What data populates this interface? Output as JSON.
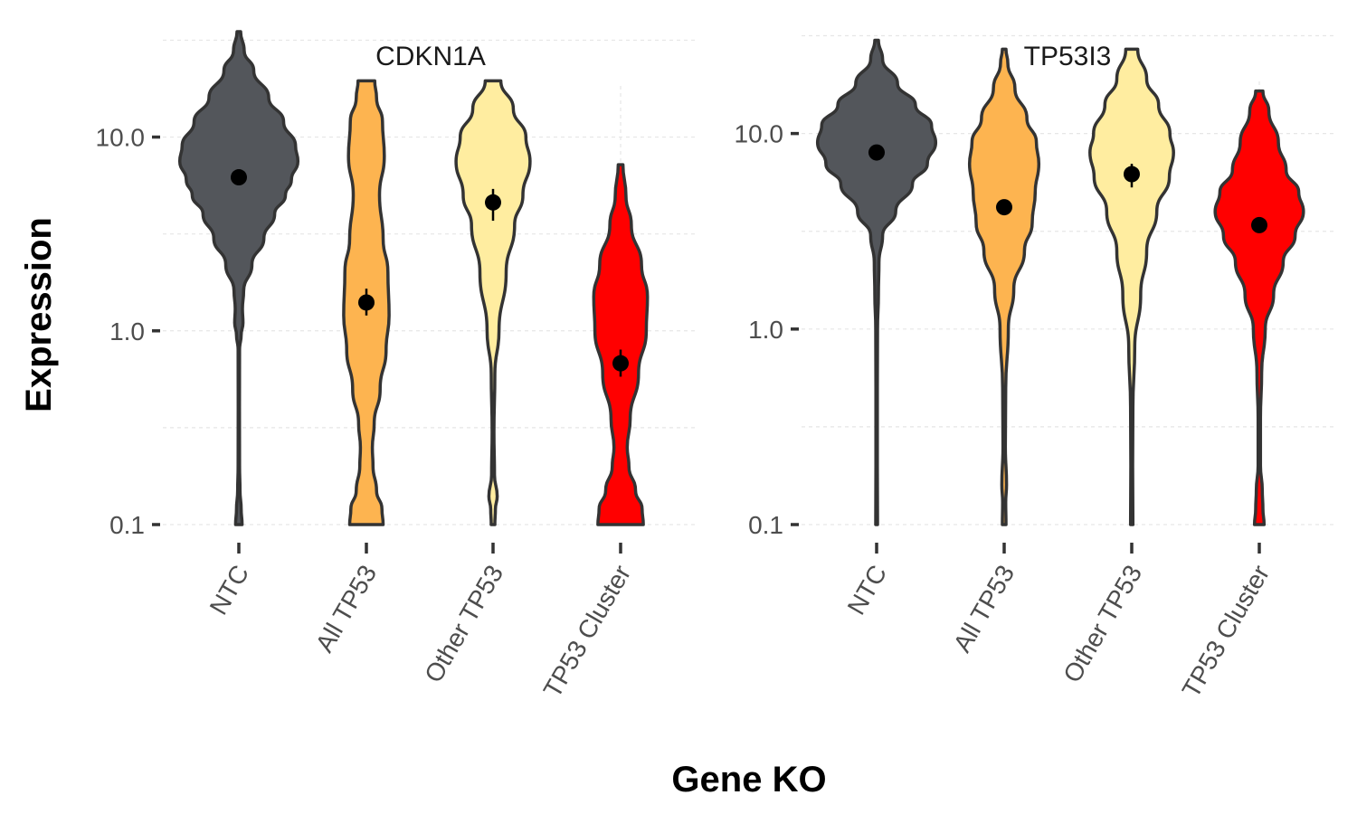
{
  "chart_data": {
    "type": "violin",
    "xlabel": "Gene KO",
    "ylabel": "Expression",
    "y_scale": "log10",
    "ylim": [
      0.1,
      35
    ],
    "y_ticks": [
      0.1,
      1.0,
      10.0
    ],
    "y_tick_labels": [
      "0.1",
      "1.0",
      "10.0"
    ],
    "categories": [
      "NTC",
      "All TP53",
      "Other TP53",
      "TP53 Cluster"
    ],
    "colors": {
      "NTC": "#53565b",
      "All TP53": "#fdb450",
      "Other TP53": "#ffeda0",
      "TP53 Cluster": "#ff0000"
    },
    "grid": true,
    "panels": [
      {
        "title": "CDKN1A",
        "series": [
          {
            "category": "NTC",
            "mean": 6.2,
            "err_low": 5.9,
            "err_high": 6.5,
            "min": 0.1,
            "max": 35,
            "profile": [
              [
                0.1,
                0.055
              ],
              [
                0.12,
                0.04
              ],
              [
                0.15,
                0.02
              ],
              [
                0.2,
                0.012
              ],
              [
                0.4,
                0.01
              ],
              [
                0.8,
                0.012
              ],
              [
                0.95,
                0.04
              ],
              [
                1.1,
                0.07
              ],
              [
                1.3,
                0.06
              ],
              [
                1.6,
                0.08
              ],
              [
                2.2,
                0.22
              ],
              [
                3,
                0.42
              ],
              [
                4,
                0.6
              ],
              [
                5,
                0.78
              ],
              [
                6,
                0.88
              ],
              [
                7.5,
                0.99
              ],
              [
                9,
                0.95
              ],
              [
                12,
                0.75
              ],
              [
                16,
                0.5
              ],
              [
                22,
                0.25
              ],
              [
                28,
                0.09
              ],
              [
                35,
                0.03
              ]
            ]
          },
          {
            "category": "All TP53",
            "mean": 1.4,
            "err_low": 1.2,
            "err_high": 1.65,
            "min": 0.1,
            "max": 19.5,
            "profile": [
              [
                0.1,
                0.28
              ],
              [
                0.12,
                0.26
              ],
              [
                0.15,
                0.17
              ],
              [
                0.2,
                0.11
              ],
              [
                0.25,
                0.1
              ],
              [
                0.33,
                0.13
              ],
              [
                0.5,
                0.23
              ],
              [
                0.8,
                0.33
              ],
              [
                1.2,
                0.38
              ],
              [
                2,
                0.36
              ],
              [
                3,
                0.28
              ],
              [
                5,
                0.22
              ],
              [
                8,
                0.3
              ],
              [
                12,
                0.27
              ],
              [
                16,
                0.17
              ],
              [
                19.5,
                0.14
              ]
            ]
          },
          {
            "category": "Other TP53",
            "mean": 4.6,
            "err_low": 3.7,
            "err_high": 5.4,
            "min": 0.1,
            "max": 19.5,
            "profile": [
              [
                0.1,
                0.03
              ],
              [
                0.12,
                0.04
              ],
              [
                0.14,
                0.07
              ],
              [
                0.18,
                0.025
              ],
              [
                0.3,
                0.015
              ],
              [
                0.6,
                0.03
              ],
              [
                1,
                0.1
              ],
              [
                2,
                0.22
              ],
              [
                3.5,
                0.36
              ],
              [
                5,
                0.5
              ],
              [
                7.5,
                0.62
              ],
              [
                10,
                0.55
              ],
              [
                14,
                0.34
              ],
              [
                19.5,
                0.13
              ]
            ]
          },
          {
            "category": "TP53 Cluster",
            "mean": 0.68,
            "err_low": 0.58,
            "err_high": 0.8,
            "min": 0.1,
            "max": 7.2,
            "profile": [
              [
                0.1,
                0.38
              ],
              [
                0.12,
                0.36
              ],
              [
                0.15,
                0.25
              ],
              [
                0.2,
                0.14
              ],
              [
                0.25,
                0.11
              ],
              [
                0.35,
                0.16
              ],
              [
                0.6,
                0.3
              ],
              [
                1,
                0.43
              ],
              [
                1.5,
                0.45
              ],
              [
                2.2,
                0.35
              ],
              [
                3.5,
                0.18
              ],
              [
                5,
                0.09
              ],
              [
                7.2,
                0.04
              ]
            ]
          }
        ]
      },
      {
        "title": "TP53I3",
        "series": [
          {
            "category": "NTC",
            "mean": 8.0,
            "err_low": 7.7,
            "err_high": 8.3,
            "min": 0.1,
            "max": 30,
            "profile": [
              [
                0.1,
                0.015
              ],
              [
                0.2,
                0.012
              ],
              [
                0.5,
                0.012
              ],
              [
                1,
                0.015
              ],
              [
                1.5,
                0.03
              ],
              [
                2.2,
                0.04
              ],
              [
                3,
                0.1
              ],
              [
                4,
                0.32
              ],
              [
                5.5,
                0.6
              ],
              [
                7,
                0.85
              ],
              [
                9,
                0.99
              ],
              [
                11,
                0.92
              ],
              [
                14,
                0.65
              ],
              [
                18,
                0.35
              ],
              [
                24,
                0.1
              ],
              [
                30,
                0.03
              ]
            ]
          },
          {
            "category": "All TP53",
            "mean": 4.2,
            "err_low": 3.9,
            "err_high": 4.5,
            "min": 0.1,
            "max": 27,
            "profile": [
              [
                0.1,
                0.03
              ],
              [
                0.13,
                0.025
              ],
              [
                0.16,
                0.04
              ],
              [
                0.25,
                0.02
              ],
              [
                0.5,
                0.025
              ],
              [
                1,
                0.07
              ],
              [
                1.6,
                0.16
              ],
              [
                2.5,
                0.34
              ],
              [
                3.5,
                0.47
              ],
              [
                5,
                0.52
              ],
              [
                7,
                0.58
              ],
              [
                9,
                0.54
              ],
              [
                12,
                0.38
              ],
              [
                17,
                0.18
              ],
              [
                23,
                0.06
              ],
              [
                27,
                0.03
              ]
            ]
          },
          {
            "category": "Other TP53",
            "mean": 6.2,
            "err_low": 5.3,
            "err_high": 7.0,
            "min": 0.1,
            "max": 27,
            "profile": [
              [
                0.1,
                0.02
              ],
              [
                0.2,
                0.015
              ],
              [
                0.4,
                0.02
              ],
              [
                0.8,
                0.05
              ],
              [
                1.5,
                0.15
              ],
              [
                2.5,
                0.25
              ],
              [
                4,
                0.42
              ],
              [
                6,
                0.63
              ],
              [
                8,
                0.7
              ],
              [
                10,
                0.64
              ],
              [
                14,
                0.45
              ],
              [
                19,
                0.25
              ],
              [
                27,
                0.1
              ]
            ]
          },
          {
            "category": "TP53 Cluster",
            "mean": 3.4,
            "err_low": 3.2,
            "err_high": 3.6,
            "min": 0.1,
            "max": 16.5,
            "profile": [
              [
                0.1,
                0.08
              ],
              [
                0.12,
                0.06
              ],
              [
                0.15,
                0.05
              ],
              [
                0.2,
                0.02
              ],
              [
                0.35,
                0.02
              ],
              [
                0.6,
                0.04
              ],
              [
                1,
                0.1
              ],
              [
                1.5,
                0.24
              ],
              [
                2.2,
                0.4
              ],
              [
                3,
                0.6
              ],
              [
                4,
                0.74
              ],
              [
                5,
                0.66
              ],
              [
                6.5,
                0.45
              ],
              [
                9,
                0.32
              ],
              [
                13,
                0.16
              ],
              [
                16.5,
                0.06
              ]
            ]
          }
        ]
      }
    ]
  }
}
